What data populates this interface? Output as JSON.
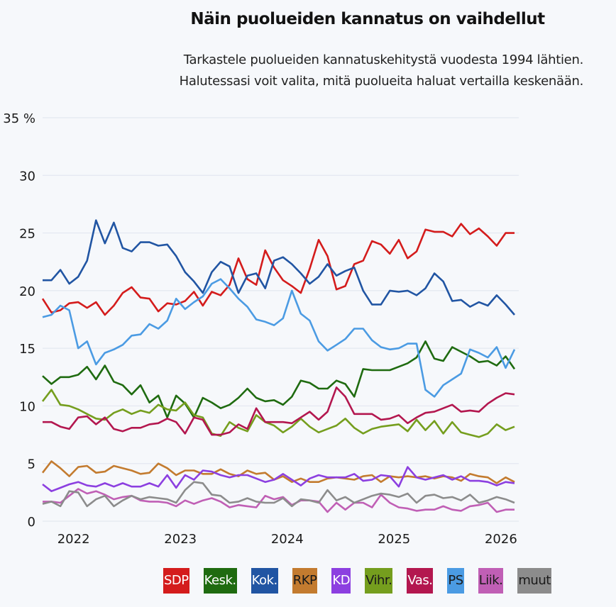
{
  "header": {
    "title": "Näin puolueiden kannatus on vaihdellut",
    "subtitle_lines": [
      "Tarkastele puolueiden kannatuskehitystä vuodesta 1994 lähtien.",
      "Halutessasi voit valita, mitä puolueita haluat vertailla keskenään."
    ]
  },
  "chart_data": {
    "type": "line",
    "title": "Näin puolueiden kannatus on vaihdellut",
    "xlabel": "",
    "ylabel": "",
    "ylim": [
      0,
      35
    ],
    "yticks": [
      0,
      5,
      10,
      15,
      20,
      25,
      30,
      35
    ],
    "ytick_labels": [
      "0",
      "5",
      "10",
      "15",
      "20",
      "25",
      "30",
      "35 %"
    ],
    "x_start": "2021-10",
    "x_end": "2026-03",
    "x_count": 54,
    "xticks": [
      {
        "label": "2022",
        "index": 3
      },
      {
        "label": "2023",
        "index": 15
      },
      {
        "label": "2024",
        "index": 27
      },
      {
        "label": "2025",
        "index": 39
      },
      {
        "label": "2026",
        "index": 51
      }
    ],
    "grid": true,
    "legend_position": "bottom",
    "series": [
      {
        "name": "SDP",
        "color": "#d41c1c",
        "text_color": "#ffffff",
        "values": [
          19.3,
          18.1,
          18.3,
          18.9,
          19.0,
          18.5,
          19.0,
          17.9,
          18.7,
          19.8,
          20.3,
          19.4,
          19.3,
          18.2,
          18.9,
          18.8,
          19.1,
          19.9,
          18.7,
          19.9,
          19.6,
          20.5,
          22.8,
          21.0,
          20.5,
          23.5,
          22.0,
          20.9,
          20.4,
          19.8,
          21.9,
          24.4,
          23.0,
          20.1,
          20.4,
          22.3,
          22.6,
          24.3,
          24.0,
          23.2,
          24.4,
          22.8,
          23.4,
          25.3,
          25.1,
          25.1,
          24.7,
          25.8,
          24.9,
          25.4,
          24.7,
          23.9,
          25.0,
          25.0
        ]
      },
      {
        "name": "Kesk.",
        "color": "#1f6b10",
        "text_color": "#ffffff",
        "values": [
          12.6,
          11.9,
          12.5,
          12.5,
          12.7,
          13.4,
          12.3,
          13.5,
          12.1,
          11.8,
          11.0,
          11.8,
          10.3,
          10.9,
          9.0,
          10.9,
          10.2,
          9.0,
          10.7,
          10.3,
          9.8,
          10.1,
          10.7,
          11.5,
          10.7,
          10.4,
          10.5,
          10.1,
          10.8,
          12.2,
          12.0,
          11.5,
          11.5,
          12.2,
          11.9,
          10.8,
          13.2,
          13.1,
          13.1,
          13.1,
          13.4,
          13.7,
          14.2,
          15.6,
          14.1,
          13.9,
          15.1,
          14.7,
          14.3,
          13.8,
          13.9,
          13.5,
          14.3,
          13.2
        ]
      },
      {
        "name": "Kok.",
        "color": "#2155a3",
        "text_color": "#ffffff",
        "values": [
          20.9,
          20.9,
          21.8,
          20.6,
          21.2,
          22.6,
          26.1,
          24.1,
          25.9,
          23.7,
          23.4,
          24.2,
          24.2,
          23.9,
          24.0,
          23.0,
          21.6,
          20.8,
          19.8,
          21.6,
          22.5,
          22.1,
          19.8,
          21.3,
          21.5,
          20.2,
          22.6,
          22.9,
          22.3,
          21.5,
          20.6,
          21.2,
          22.3,
          21.3,
          21.7,
          22.0,
          20.0,
          18.8,
          18.8,
          20.0,
          19.9,
          20.0,
          19.6,
          20.2,
          21.5,
          20.8,
          19.1,
          19.2,
          18.6,
          19.0,
          18.7,
          19.6,
          18.8,
          17.9
        ]
      },
      {
        "name": "RKP",
        "color": "#c37b2f",
        "text_color": "#1a1a1a",
        "values": [
          4.2,
          5.2,
          4.6,
          3.9,
          4.7,
          4.8,
          4.2,
          4.3,
          4.8,
          4.6,
          4.4,
          4.1,
          4.2,
          5.0,
          4.6,
          4.0,
          4.4,
          4.4,
          4.1,
          4.1,
          4.5,
          4.1,
          3.9,
          4.4,
          4.1,
          4.2,
          3.6,
          3.9,
          3.4,
          3.7,
          3.4,
          3.4,
          3.7,
          3.8,
          3.7,
          3.6,
          3.9,
          4.0,
          3.4,
          3.9,
          3.8,
          3.9,
          3.8,
          3.9,
          3.7,
          3.9,
          3.8,
          3.5,
          4.1,
          3.9,
          3.8,
          3.3,
          3.8,
          3.4
        ]
      },
      {
        "name": "KD",
        "color": "#8c3fe0",
        "text_color": "#ffffff",
        "values": [
          3.2,
          2.6,
          2.9,
          3.2,
          3.4,
          3.1,
          3.0,
          3.3,
          3.0,
          3.3,
          3.0,
          3.0,
          3.3,
          3.0,
          4.0,
          2.9,
          4.0,
          3.6,
          4.4,
          4.3,
          4.0,
          3.8,
          4.0,
          4.0,
          3.7,
          3.4,
          3.6,
          4.1,
          3.6,
          3.1,
          3.7,
          4.0,
          3.8,
          3.8,
          3.8,
          4.1,
          3.5,
          3.6,
          4.0,
          3.9,
          3.0,
          4.7,
          3.8,
          3.6,
          3.8,
          4.0,
          3.6,
          3.9,
          3.5,
          3.5,
          3.4,
          3.1,
          3.4,
          3.3
        ]
      },
      {
        "name": "Vihr.",
        "color": "#759e1e",
        "text_color": "#1a1a1a",
        "values": [
          10.4,
          11.4,
          10.1,
          10.0,
          9.7,
          9.3,
          8.9,
          8.8,
          9.4,
          9.7,
          9.3,
          9.6,
          9.4,
          10.1,
          9.7,
          9.6,
          10.3,
          9.2,
          9.0,
          7.6,
          7.4,
          8.6,
          8.1,
          7.8,
          9.2,
          8.6,
          8.3,
          7.7,
          8.2,
          8.9,
          8.2,
          7.7,
          8.0,
          8.3,
          8.9,
          8.1,
          7.6,
          8.0,
          8.2,
          8.3,
          8.4,
          7.8,
          8.8,
          7.9,
          8.7,
          7.6,
          8.6,
          7.7,
          7.5,
          7.3,
          7.6,
          8.4,
          7.9,
          8.2
        ]
      },
      {
        "name": "Vas.",
        "color": "#b3174f",
        "text_color": "#ffffff",
        "values": [
          8.6,
          8.6,
          8.2,
          8.0,
          9.0,
          9.1,
          8.4,
          9.0,
          8.0,
          7.8,
          8.1,
          8.1,
          8.4,
          8.5,
          8.9,
          8.6,
          7.6,
          9.0,
          8.8,
          7.5,
          7.5,
          7.7,
          8.4,
          8.0,
          9.8,
          8.6,
          8.6,
          8.6,
          8.5,
          9.0,
          9.5,
          8.8,
          9.5,
          11.6,
          10.8,
          9.3,
          9.3,
          9.3,
          8.8,
          8.9,
          9.2,
          8.5,
          9.0,
          9.4,
          9.5,
          9.8,
          10.1,
          9.5,
          9.6,
          9.5,
          10.2,
          10.7,
          11.1,
          11.0
        ]
      },
      {
        "name": "PS",
        "color": "#4b9be3",
        "text_color": "#1a1a1a",
        "values": [
          17.7,
          17.9,
          18.7,
          18.3,
          15.0,
          15.6,
          13.6,
          14.6,
          14.9,
          15.3,
          16.1,
          16.2,
          17.1,
          16.7,
          17.4,
          19.3,
          18.4,
          19.0,
          19.5,
          20.6,
          21.0,
          20.2,
          19.3,
          18.6,
          17.5,
          17.3,
          17.0,
          17.6,
          20.0,
          18.0,
          17.4,
          15.6,
          14.8,
          15.3,
          15.8,
          16.7,
          16.7,
          15.7,
          15.1,
          14.9,
          15.0,
          15.4,
          15.4,
          11.4,
          10.8,
          11.8,
          12.3,
          12.8,
          14.9,
          14.6,
          14.2,
          15.1,
          13.3,
          14.9
        ]
      },
      {
        "name": "Liik.",
        "color": "#c05fb5",
        "text_color": "#1a1a1a",
        "values": [
          1.7,
          1.7,
          1.6,
          2.2,
          2.8,
          2.4,
          2.6,
          2.3,
          1.9,
          2.1,
          2.2,
          1.8,
          1.7,
          1.7,
          1.6,
          1.3,
          1.8,
          1.5,
          1.8,
          2.0,
          1.7,
          1.2,
          1.4,
          1.3,
          1.2,
          2.2,
          1.9,
          2.1,
          1.4,
          1.8,
          1.8,
          1.7,
          0.8,
          1.6,
          1.0,
          1.6,
          1.6,
          1.2,
          2.3,
          1.6,
          1.2,
          1.1,
          0.9,
          1.0,
          1.0,
          1.3,
          1.0,
          0.9,
          1.3,
          1.4,
          1.6,
          0.8,
          1.0,
          1.0
        ]
      },
      {
        "name": "muut",
        "color": "#8c8c8c",
        "text_color": "#1a1a1a",
        "values": [
          1.5,
          1.7,
          1.3,
          2.6,
          2.5,
          1.3,
          1.9,
          2.2,
          1.3,
          1.8,
          2.2,
          1.9,
          2.1,
          2.0,
          1.9,
          1.6,
          2.7,
          3.4,
          3.3,
          2.3,
          2.2,
          1.6,
          1.7,
          2.0,
          1.7,
          1.6,
          1.6,
          2.0,
          1.3,
          1.9,
          1.8,
          1.6,
          2.7,
          1.8,
          2.1,
          1.6,
          1.9,
          2.2,
          2.4,
          2.3,
          2.1,
          2.4,
          1.6,
          2.2,
          2.3,
          2.0,
          2.1,
          1.8,
          2.3,
          1.6,
          1.8,
          2.1,
          1.9,
          1.6
        ]
      }
    ]
  }
}
